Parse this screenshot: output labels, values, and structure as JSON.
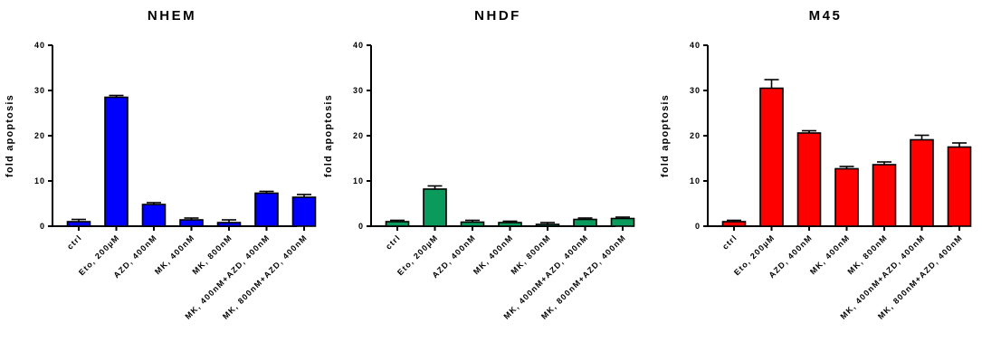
{
  "chart_data": [
    {
      "type": "bar",
      "title": "NHEM",
      "ylabel": "fold apoptosis",
      "xlabel": "",
      "ylim": [
        0,
        40
      ],
      "yticks": [
        0,
        10,
        20,
        30,
        40
      ],
      "color": "#0000ff",
      "categories": [
        "ctrl",
        "Eto, 200µM",
        "AZD, 400nM",
        "MK, 400nM",
        "MK, 800nM",
        "MK, 400nM+AZD, 400nM",
        "MK, 800nM+AZD, 400nM"
      ],
      "values": [
        1.0,
        28.5,
        4.8,
        1.4,
        0.8,
        7.3,
        6.4
      ],
      "errors": [
        0.5,
        0.4,
        0.4,
        0.4,
        0.6,
        0.4,
        0.6
      ]
    },
    {
      "type": "bar",
      "title": "NHDF",
      "ylabel": "fold apoptosis",
      "xlabel": "",
      "ylim": [
        0,
        40
      ],
      "yticks": [
        0,
        10,
        20,
        30,
        40
      ],
      "color": "#0a9a5c",
      "categories": [
        "ctrl",
        "Eto, 200µM",
        "AZD, 400nM",
        "MK, 400nM",
        "MK, 800nM",
        "MK, 400nM+AZD, 400nM",
        "MK, 800nM+AZD, 400nM"
      ],
      "values": [
        1.0,
        8.2,
        0.9,
        0.8,
        0.4,
        1.5,
        1.7
      ],
      "errors": [
        0.3,
        0.7,
        0.4,
        0.3,
        0.4,
        0.3,
        0.3
      ]
    },
    {
      "type": "bar",
      "title": "M45",
      "ylabel": "fold apoptosis",
      "xlabel": "",
      "ylim": [
        0,
        40
      ],
      "yticks": [
        0,
        10,
        20,
        30,
        40
      ],
      "color": "#ff0000",
      "categories": [
        "ctrl",
        "Eto, 200µM",
        "AZD, 400nM",
        "MK, 400nM",
        "MK, 800nM",
        "MK, 400nM+AZD, 400nM",
        "MK, 800nM+AZD, 400nM"
      ],
      "values": [
        1.0,
        30.5,
        20.6,
        12.7,
        13.6,
        19.1,
        17.5
      ],
      "errors": [
        0.3,
        1.9,
        0.5,
        0.5,
        0.6,
        1.0,
        0.9
      ]
    }
  ]
}
